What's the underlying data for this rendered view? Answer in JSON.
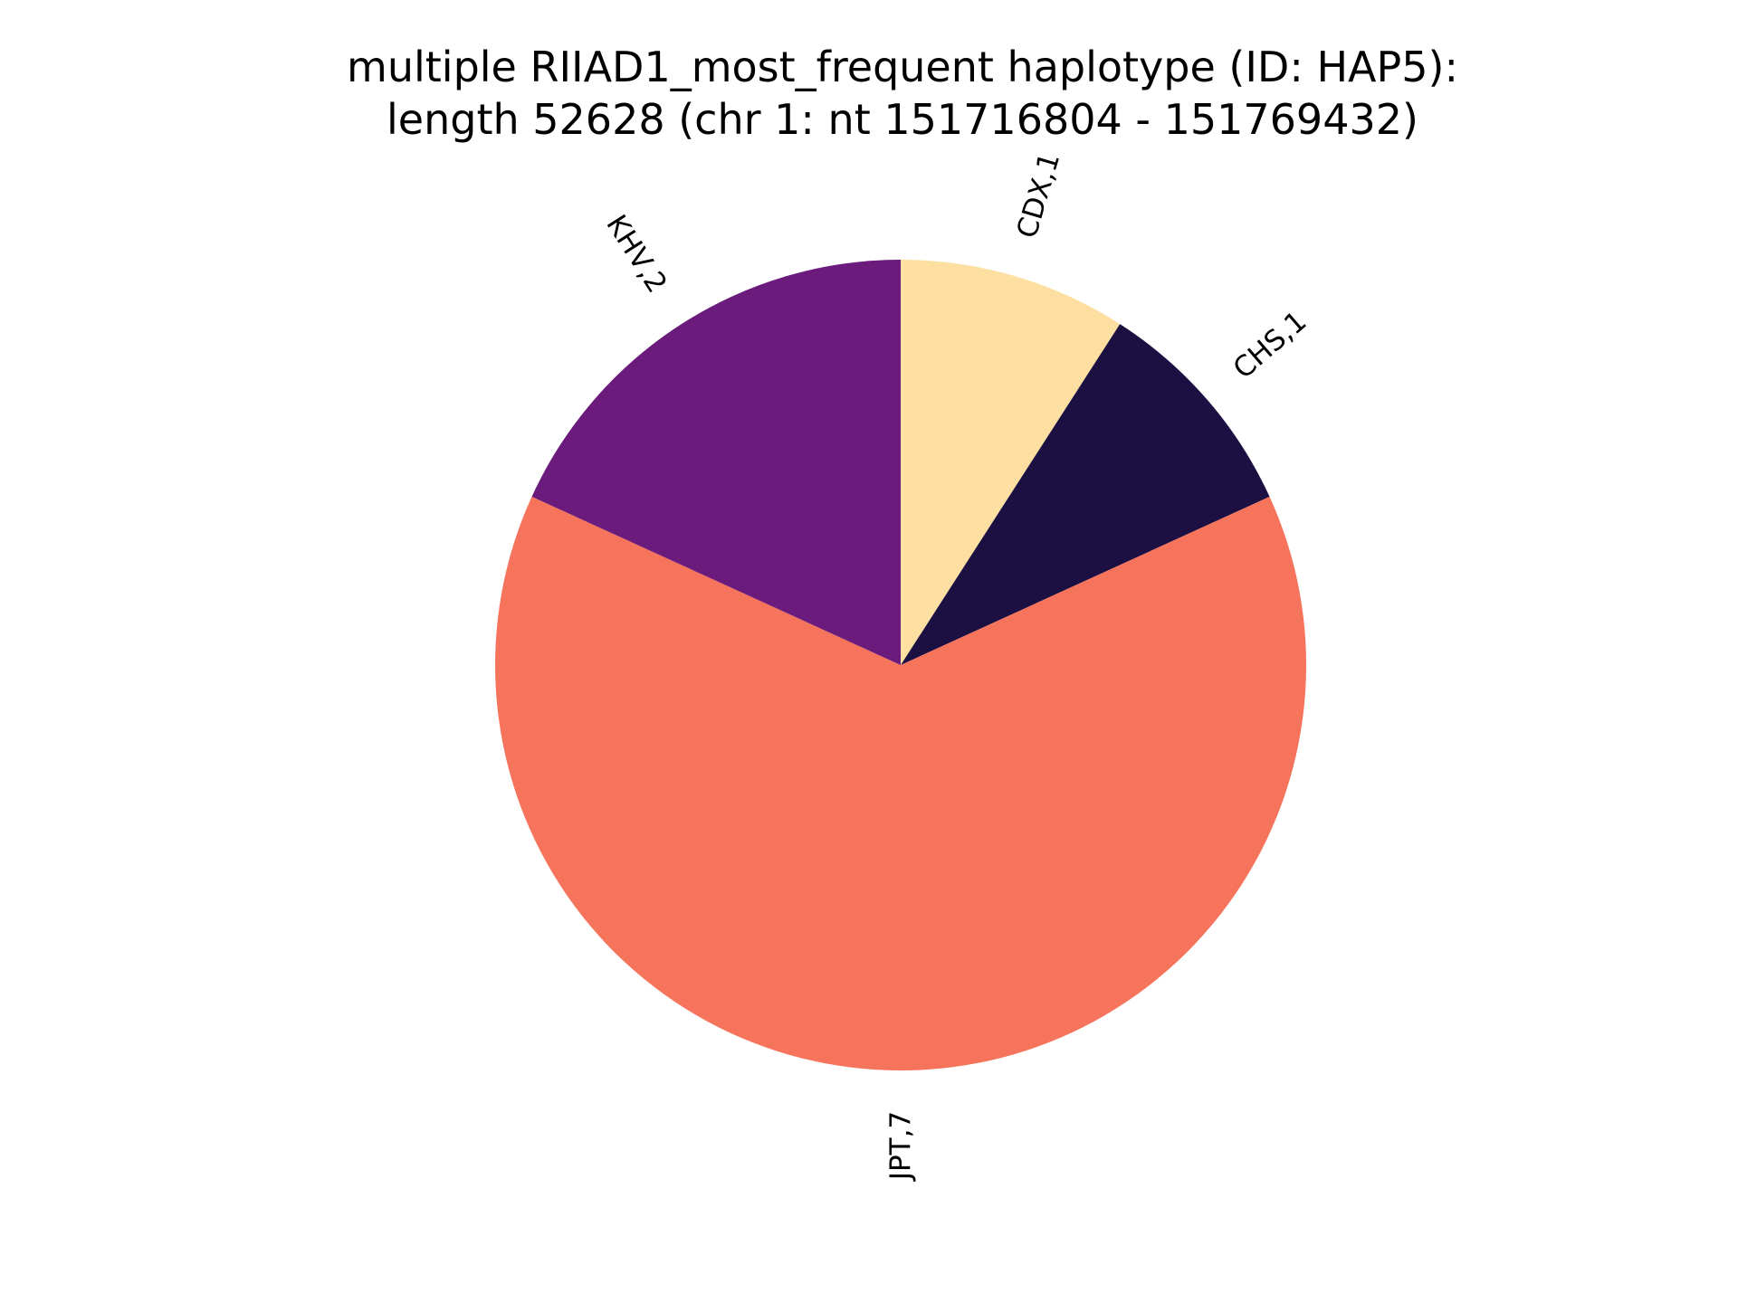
{
  "chart_data": {
    "type": "pie",
    "title_lines": [
      "multiple RIIAD1_most_frequent haplotype (ID: HAP5):",
      "length 52628 (chr 1: nt 151716804 - 151769432)"
    ],
    "slices": [
      {
        "category": "CDX",
        "value": 1,
        "label": "CDX,1",
        "color": "#fde0a1"
      },
      {
        "category": "CHS",
        "value": 1,
        "label": "CHS,1",
        "color": "#1c1042"
      },
      {
        "category": "JPT",
        "value": 7,
        "label": "JPT,7",
        "color": "#f6735c"
      },
      {
        "category": "KHV",
        "value": 2,
        "label": "KHV,2",
        "color": "#6a1b7c"
      }
    ],
    "start_angle_deg": 90,
    "direction": "clockwise",
    "label_rotation": "radial"
  }
}
